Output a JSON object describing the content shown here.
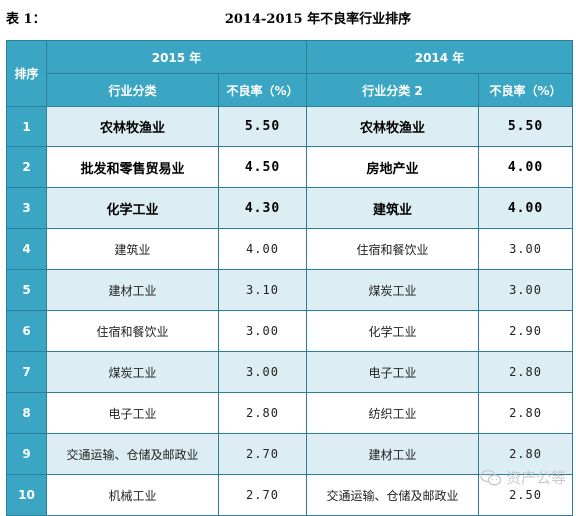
{
  "caption": {
    "label": "表 1：",
    "title": "2014-2015 年不良率行业排序"
  },
  "table": {
    "rank_header": "排序",
    "group_2015": "2015 年",
    "group_2014": "2014 年",
    "sub_2015_industry": "行业分类",
    "sub_2015_rate": "不良率（%）",
    "sub_2014_industry": "行业分类 2",
    "sub_2014_rate": "不良率（%）",
    "rows": [
      {
        "rank": "1",
        "ind2015": "农林牧渔业",
        "rate2015": "5.50",
        "ind2014": "农林牧渔业",
        "rate2014": "5.50"
      },
      {
        "rank": "2",
        "ind2015": "批发和零售贸易业",
        "rate2015": "4.50",
        "ind2014": "房地产业",
        "rate2014": "4.00"
      },
      {
        "rank": "3",
        "ind2015": "化学工业",
        "rate2015": "4.30",
        "ind2014": "建筑业",
        "rate2014": "4.00"
      },
      {
        "rank": "4",
        "ind2015": "建筑业",
        "rate2015": "4.00",
        "ind2014": "住宿和餐饮业",
        "rate2014": "3.00"
      },
      {
        "rank": "5",
        "ind2015": "建材工业",
        "rate2015": "3.10",
        "ind2014": "煤炭工业",
        "rate2014": "3.00"
      },
      {
        "rank": "6",
        "ind2015": "住宿和餐饮业",
        "rate2015": "3.00",
        "ind2014": "化学工业",
        "rate2014": "2.90"
      },
      {
        "rank": "7",
        "ind2015": "煤炭工业",
        "rate2015": "3.00",
        "ind2014": "电子工业",
        "rate2014": "2.80"
      },
      {
        "rank": "8",
        "ind2015": "电子工业",
        "rate2015": "2.80",
        "ind2014": "纺织工业",
        "rate2014": "2.80"
      },
      {
        "rank": "9",
        "ind2015": "交通运输、仓储及邮政业",
        "rate2015": "2.70",
        "ind2014": "建材工业",
        "rate2014": "2.80"
      },
      {
        "rank": "10",
        "ind2015": "机械工业",
        "rate2015": "2.70",
        "ind2014": "交通运输、仓储及邮政业",
        "rate2014": "2.50"
      }
    ]
  },
  "watermark": {
    "text": "资产公等",
    "icon": "wechat-icon"
  },
  "colors": {
    "header_bg": "#3aa6c4",
    "band_bg": "#dcedf3",
    "border": "#2b7f99"
  }
}
